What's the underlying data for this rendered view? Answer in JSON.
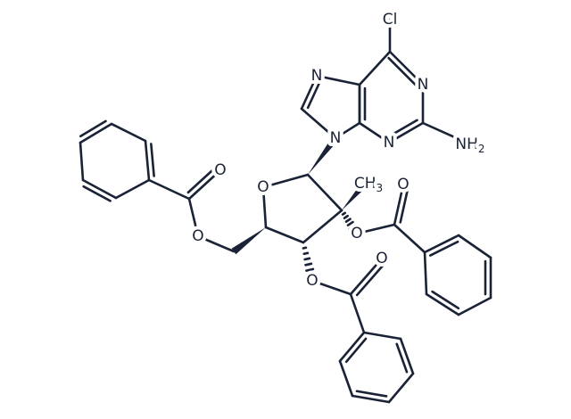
{
  "atoms": [
    {
      "label": "Cl"
    },
    {
      "label": "N"
    },
    {
      "label": "N"
    },
    {
      "label": "N"
    },
    {
      "label": "N"
    },
    {
      "label": "NH",
      "sub": "2"
    },
    {
      "label": "O"
    },
    {
      "label": "CH",
      "sub": "3"
    },
    {
      "label": "O"
    },
    {
      "label": "O"
    },
    {
      "label": "O"
    },
    {
      "label": "O"
    },
    {
      "label": "O"
    },
    {
      "label": "O"
    }
  ]
}
